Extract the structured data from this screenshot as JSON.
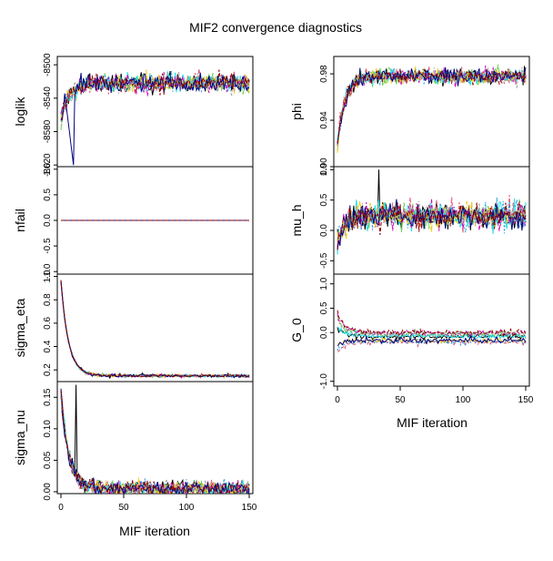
{
  "title": "MIF2 convergence diagnostics",
  "xlabel": "MIF iteration",
  "colors": [
    "#000000",
    "#DF536B",
    "#61D04F",
    "#2297E6",
    "#28E2E5",
    "#CD0BBC",
    "#F5C710",
    "#9E9E9E",
    "#000080",
    "#8B0000"
  ],
  "chart_data": [
    {
      "type": "line",
      "ylabel": "loglik",
      "yticks": [
        "-8500",
        "-8540",
        "-8580",
        "-8620"
      ],
      "ylim": [
        -8622,
        -8490
      ],
      "xticks": [
        "0",
        "50",
        "100",
        "150"
      ],
      "xlim": [
        0,
        150
      ],
      "pattern": {
        "start": -8565,
        "settle": -8522,
        "noise": 10,
        "dip": {
          "iteration": 10,
          "value": -8620
        }
      }
    },
    {
      "type": "line",
      "ylabel": "nfail",
      "yticks": [
        "1.0",
        "0.5",
        "0.0",
        "-0.5",
        "-1.0"
      ],
      "ylim": [
        -1.05,
        1.05
      ],
      "xticks": [
        "0",
        "50",
        "100",
        "150"
      ],
      "xlim": [
        0,
        150
      ],
      "pattern": {
        "constant": 0
      }
    },
    {
      "type": "line",
      "ylabel": "sigma_eta",
      "yticks": [
        "0.2",
        "0.4",
        "0.6",
        "0.8",
        "1.0"
      ],
      "ylim": [
        0.1,
        1.02
      ],
      "xticks": [
        "0",
        "50",
        "100",
        "150"
      ],
      "xlim": [
        0,
        150
      ],
      "pattern": {
        "start": 0.96,
        "settle": 0.15,
        "noise": 0.012
      }
    },
    {
      "type": "line",
      "ylabel": "sigma_nu",
      "yticks": [
        "0.00",
        "0.05",
        "0.10",
        "0.15"
      ],
      "ylim": [
        -0.003,
        0.175
      ],
      "xticks": [
        "0",
        "50",
        "100",
        "150"
      ],
      "xlim": [
        0,
        150
      ],
      "pattern": {
        "start": 0.16,
        "settle": 0.005,
        "noise": 0.012,
        "spike": {
          "iteration": 12,
          "value": 0.17
        }
      }
    },
    {
      "type": "line",
      "ylabel": "phi",
      "yticks": [
        "0.98",
        "0.94",
        "0.90"
      ],
      "ylim": [
        0.9,
        0.995
      ],
      "xticks": [
        "0",
        "50",
        "100",
        "150"
      ],
      "xlim": [
        0,
        150
      ],
      "pattern": {
        "start": 0.92,
        "settle": 0.978,
        "noise": 0.006
      }
    },
    {
      "type": "line",
      "ylabel": "mu_h",
      "yticks": [
        "1.0",
        "0.5",
        "0.0",
        "-0.5"
      ],
      "ylim": [
        -0.72,
        1.05
      ],
      "xticks": [
        "0",
        "50",
        "100",
        "150"
      ],
      "xlim": [
        0,
        150
      ],
      "pattern": {
        "start": -0.2,
        "settle": 0.25,
        "noise": 0.2,
        "spike": {
          "iteration": 33,
          "value": 1.0
        }
      }
    },
    {
      "type": "line",
      "ylabel": "G_0",
      "yticks": [
        "1.0",
        "0.5",
        "0.0",
        "-1.0"
      ],
      "ylim": [
        -1.1,
        1.2
      ],
      "xticks": [
        "0",
        "50",
        "100",
        "150"
      ],
      "xlim": [
        0,
        150
      ],
      "pattern": {
        "start": 0.0,
        "settle": -0.1,
        "noise": 0.05,
        "spread": 0.15
      }
    }
  ]
}
